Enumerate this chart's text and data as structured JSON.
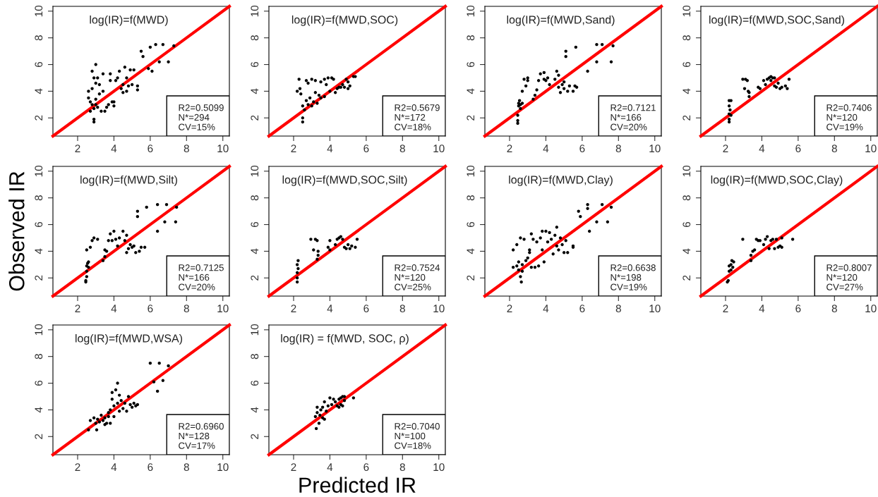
{
  "chart_data": [
    {
      "type": "scatter",
      "title": "log(IR)=f(MWD)",
      "xlim": [
        0.64,
        10.36
      ],
      "ylim": [
        0.64,
        10.36
      ],
      "xticks": [
        2,
        4,
        6,
        8,
        10
      ],
      "yticks": [
        2,
        4,
        6,
        8,
        10
      ],
      "marker": "circle",
      "annotations": [
        "R2=0.5099\nN*=294\nCV=15%"
      ],
      "series": [
        {
          "type": "scatter",
          "color": "#000000",
          "x": [
            2.6,
            2.6,
            2.7,
            2.7,
            2.8,
            2.8,
            2.8,
            2.9,
            2.9,
            2.9,
            2.9,
            3.0,
            3.0,
            3.0,
            3.0,
            3.1,
            3.1,
            3.2,
            3.2,
            3.3,
            3.4,
            3.4,
            3.5,
            3.6,
            3.7,
            3.8,
            3.8,
            3.9,
            4.0,
            4.0,
            4.1,
            4.2,
            4.3,
            4.4,
            4.5,
            4.5,
            4.6,
            4.7,
            4.7,
            4.8,
            4.9,
            5.0,
            5.1,
            5.3,
            5.3,
            5.5,
            5.6,
            5.9,
            6.0,
            6.1,
            6.3,
            6.5,
            6.7,
            7.0,
            7.3
          ],
          "values": [
            3.5,
            4.0,
            3.2,
            2.5,
            3.0,
            4.2,
            5.5,
            5.0,
            2.7,
            1.7,
            1.9,
            6.0,
            3.4,
            4.6,
            3.0,
            5.0,
            2.8,
            3.8,
            4.5,
            2.5,
            5.3,
            4.0,
            2.5,
            2.8,
            3.0,
            4.8,
            5.3,
            3.2,
            2.9,
            3.2,
            4.8,
            5.0,
            5.5,
            4.2,
            3.9,
            4.5,
            5.8,
            4.0,
            5.0,
            4.4,
            5.6,
            4.5,
            5.6,
            4.4,
            4.1,
            7.0,
            6.6,
            5.7,
            7.3,
            5.5,
            7.5,
            6.2,
            7.5,
            6.2,
            7.4
          ]
        },
        {
          "type": "line",
          "color": "#ff0000",
          "marker": "none",
          "x": [
            0.64,
            10.36
          ],
          "values": [
            0.64,
            10.36
          ]
        }
      ]
    },
    {
      "type": "scatter",
      "title": "log(IR)=f(MWD,SOC)",
      "xlim": [
        0.64,
        10.36
      ],
      "ylim": [
        0.64,
        10.36
      ],
      "xticks": [
        2,
        4,
        6,
        8,
        10
      ],
      "yticks": [
        2,
        4,
        6,
        8,
        10
      ],
      "marker": "circle",
      "annotations": [
        "R2=0.5679\nN*=172\nCV=18%"
      ],
      "series": [
        {
          "type": "scatter",
          "color": "#000000",
          "x": [
            2.2,
            2.3,
            2.35,
            2.4,
            2.5,
            2.5,
            2.5,
            2.6,
            2.7,
            2.7,
            2.8,
            2.8,
            2.9,
            3.0,
            3.0,
            3.1,
            3.2,
            3.2,
            3.3,
            3.4,
            3.5,
            3.5,
            3.7,
            3.7,
            3.8,
            3.9,
            4.0,
            4.1,
            4.2,
            4.3,
            4.4,
            4.5,
            4.6,
            4.7,
            4.8,
            4.9,
            5.0,
            5.0,
            5.1,
            5.3,
            5.4
          ],
          "values": [
            4.0,
            4.9,
            4.2,
            3.8,
            1.7,
            2.0,
            2.9,
            2.6,
            3.3,
            4.8,
            4.6,
            3.0,
            3.5,
            4.9,
            2.9,
            3.2,
            4.8,
            3.9,
            3.1,
            3.7,
            4.7,
            3.5,
            4.9,
            3.6,
            4.5,
            5.0,
            4.0,
            5.0,
            4.9,
            3.9,
            4.2,
            4.3,
            4.3,
            4.5,
            4.3,
            4.9,
            4.2,
            4.7,
            4.4,
            5.1,
            5.1
          ]
        },
        {
          "type": "line",
          "color": "#ff0000",
          "marker": "none",
          "x": [
            0.64,
            10.36
          ],
          "values": [
            0.64,
            10.36
          ]
        }
      ]
    },
    {
      "type": "scatter",
      "title": "log(IR)=f(MWD,Sand)",
      "xlim": [
        0.64,
        10.36
      ],
      "ylim": [
        0.64,
        10.36
      ],
      "xticks": [
        2,
        4,
        6,
        8,
        10
      ],
      "yticks": [
        2,
        4,
        6,
        8,
        10
      ],
      "marker": "circle",
      "annotations": [
        "R2=0.7121\nN*=166\nCV=20%"
      ],
      "series": [
        {
          "type": "scatter",
          "color": "#000000",
          "x": [
            2.45,
            2.45,
            2.45,
            2.5,
            2.5,
            2.55,
            2.6,
            2.6,
            2.7,
            2.7,
            2.8,
            2.9,
            3.0,
            3.0,
            3.3,
            3.4,
            3.5,
            3.6,
            3.7,
            3.9,
            3.9,
            4.0,
            4.1,
            4.2,
            4.5,
            4.6,
            4.7,
            4.7,
            4.8,
            4.9,
            5.0,
            5.0,
            5.1,
            5.1,
            5.2,
            5.3,
            5.5,
            5.6,
            5.65,
            5.7,
            6.3,
            6.8,
            6.8,
            7.1,
            7.6,
            7.7
          ],
          "values": [
            1.6,
            1.8,
            2.2,
            2.9,
            3.1,
            3.3,
            2.7,
            3.0,
            4.0,
            3.1,
            4.9,
            4.4,
            4.8,
            5.0,
            3.4,
            3.7,
            4.1,
            4.8,
            5.3,
            5.4,
            4.9,
            4.8,
            5.0,
            4.5,
            4.9,
            5.5,
            5.2,
            4.3,
            3.9,
            4.5,
            4.2,
            4.7,
            6.6,
            7.0,
            4.0,
            4.4,
            4.0,
            4.4,
            7.3,
            4.3,
            5.5,
            7.5,
            6.2,
            7.5,
            6.2,
            7.4
          ]
        },
        {
          "type": "line",
          "color": "#ff0000",
          "marker": "none",
          "x": [
            0.64,
            10.36
          ],
          "values": [
            0.64,
            10.36
          ]
        }
      ]
    },
    {
      "type": "scatter",
      "title": "log(IR)=f(MWD,SOC,Sand)",
      "xlim": [
        0.64,
        10.36
      ],
      "ylim": [
        0.64,
        10.36
      ],
      "xticks": [
        2,
        4,
        6,
        8,
        10
      ],
      "yticks": [
        2,
        4,
        6,
        8,
        10
      ],
      "marker": "circle",
      "annotations": [
        "R2=0.7406\nN*=120\nCV=19%"
      ],
      "series": [
        {
          "type": "scatter",
          "color": "#000000",
          "x": [
            2.2,
            2.2,
            2.2,
            2.25,
            2.2,
            2.2,
            2.3,
            2.3,
            2.95,
            3.05,
            3.1,
            3.2,
            3.25,
            3.3,
            3.3,
            3.8,
            3.9,
            4.1,
            4.2,
            4.3,
            4.4,
            4.5,
            4.5,
            4.6,
            4.7,
            4.7,
            4.8,
            4.9,
            5.0,
            5.1,
            5.3,
            5.4,
            5.5
          ],
          "values": [
            1.7,
            1.9,
            2.3,
            2.6,
            2.9,
            3.3,
            3.3,
            2.2,
            4.9,
            4.2,
            4.9,
            4.8,
            4.0,
            3.6,
            3.9,
            4.3,
            4.2,
            4.8,
            4.5,
            4.9,
            5.0,
            4.8,
            5.1,
            5.0,
            5.0,
            4.4,
            4.3,
            4.6,
            4.2,
            4.3,
            4.4,
            4.2,
            4.9
          ]
        },
        {
          "type": "line",
          "color": "#ff0000",
          "marker": "none",
          "x": [
            0.64,
            10.36
          ],
          "values": [
            0.64,
            10.36
          ]
        }
      ]
    },
    {
      "type": "scatter",
      "title": "log(IR)=f(MWD,Silt)",
      "ylabel": "Observed IR",
      "xlim": [
        0.64,
        10.36
      ],
      "ylim": [
        0.64,
        10.36
      ],
      "xticks": [
        2,
        4,
        6,
        8,
        10
      ],
      "yticks": [
        2,
        4,
        6,
        8,
        10
      ],
      "marker": "circle",
      "annotations": [
        "R2=0.7125\nN*=166\nCV=20%"
      ],
      "series": [
        {
          "type": "scatter",
          "color": "#000000",
          "x": [
            2.45,
            2.45,
            2.5,
            2.5,
            2.5,
            2.55,
            2.6,
            2.6,
            2.5,
            2.7,
            2.8,
            2.9,
            3.1,
            3.4,
            3.5,
            3.5,
            3.6,
            3.7,
            3.8,
            3.9,
            4.0,
            4.1,
            4.2,
            4.3,
            4.5,
            4.6,
            4.7,
            4.7,
            4.8,
            4.9,
            5.0,
            5.1,
            5.2,
            5.3,
            5.3,
            5.4,
            5.5,
            5.7,
            5.8,
            6.4,
            6.4,
            6.8,
            6.9,
            7.4,
            7.45
          ],
          "values": [
            1.7,
            1.8,
            2.1,
            2.5,
            2.9,
            3.1,
            3.2,
            2.8,
            4.1,
            4.3,
            4.8,
            5.0,
            4.9,
            3.3,
            3.6,
            4.1,
            4.0,
            4.8,
            5.3,
            4.8,
            5.5,
            4.9,
            4.4,
            5.0,
            5.5,
            4.8,
            5.2,
            3.9,
            4.2,
            4.5,
            4.3,
            4.4,
            3.9,
            7.0,
            6.6,
            4.0,
            4.3,
            4.3,
            7.3,
            5.5,
            7.5,
            6.2,
            7.5,
            6.2,
            7.3
          ]
        },
        {
          "type": "line",
          "color": "#ff0000",
          "marker": "none",
          "x": [
            0.64,
            10.36
          ],
          "values": [
            0.64,
            10.36
          ]
        }
      ]
    },
    {
      "type": "scatter",
      "title": "log(IR)=f(MWD,SOC,Silt)",
      "xlim": [
        0.64,
        10.36
      ],
      "ylim": [
        0.64,
        10.36
      ],
      "xticks": [
        2,
        4,
        6,
        8,
        10
      ],
      "yticks": [
        2,
        4,
        6,
        8,
        10
      ],
      "marker": "circle",
      "annotations": [
        "R2=0.7524\nN*=120\nCV=25%"
      ],
      "series": [
        {
          "type": "scatter",
          "color": "#000000",
          "x": [
            2.2,
            2.2,
            2.2,
            2.25,
            2.2,
            2.25,
            2.95,
            3.1,
            3.2,
            3.3,
            3.3,
            3.35,
            3.35,
            3.9,
            4.0,
            4.0,
            4.3,
            4.4,
            4.5,
            4.6,
            4.7,
            4.8,
            4.9,
            5.0,
            5.1,
            5.2,
            5.4,
            5.5
          ],
          "values": [
            1.7,
            2.0,
            2.4,
            2.7,
            3.0,
            3.3,
            4.9,
            4.1,
            4.9,
            4.8,
            3.4,
            3.7,
            4.0,
            4.3,
            4.1,
            4.8,
            4.5,
            4.9,
            5.0,
            5.1,
            4.9,
            4.3,
            4.2,
            4.5,
            4.2,
            4.4,
            4.3,
            4.9
          ]
        },
        {
          "type": "line",
          "color": "#ff0000",
          "marker": "none",
          "x": [
            0.64,
            10.36
          ],
          "values": [
            0.64,
            10.36
          ]
        }
      ]
    },
    {
      "type": "scatter",
      "title": "log(IR)=f(MWD,Clay)",
      "xlim": [
        0.64,
        10.36
      ],
      "ylim": [
        0.64,
        10.36
      ],
      "xticks": [
        2,
        4,
        6,
        8,
        10
      ],
      "yticks": [
        2,
        4,
        6,
        8,
        10
      ],
      "marker": "circle",
      "annotations": [
        "R2=0.6638\nN*=198\nCV=19%"
      ],
      "series": [
        {
          "type": "scatter",
          "color": "#000000",
          "x": [
            2.2,
            2.2,
            2.4,
            2.4,
            2.5,
            2.5,
            2.6,
            2.6,
            2.65,
            2.7,
            2.7,
            2.8,
            2.9,
            3.0,
            3.1,
            3.1,
            3.2,
            3.2,
            3.3,
            3.4,
            3.5,
            3.6,
            3.7,
            3.8,
            3.8,
            3.9,
            4.0,
            4.1,
            4.2,
            4.3,
            4.4,
            4.5,
            4.6,
            4.6,
            4.7,
            4.8,
            4.9,
            5.0,
            5.1,
            5.2,
            5.5,
            5.5,
            5.8,
            5.9,
            6.3,
            6.3,
            6.4,
            6.8,
            7.1,
            7.4,
            7.6
          ],
          "values": [
            4.1,
            2.8,
            4.5,
            2.9,
            3.2,
            2.6,
            5.0,
            2.1,
            1.7,
            3.0,
            2.5,
            4.9,
            3.3,
            3.5,
            4.1,
            3.9,
            5.3,
            2.8,
            4.9,
            2.8,
            4.7,
            2.9,
            5.0,
            5.5,
            4.1,
            3.2,
            5.5,
            4.7,
            5.4,
            4.9,
            3.8,
            5.2,
            5.8,
            4.4,
            4.1,
            5.0,
            4.5,
            3.9,
            4.8,
            3.9,
            4.3,
            4.4,
            7.0,
            6.6,
            7.5,
            7.2,
            5.5,
            6.2,
            7.5,
            6.2,
            7.3
          ]
        },
        {
          "type": "line",
          "color": "#ff0000",
          "marker": "none",
          "x": [
            0.64,
            10.36
          ],
          "values": [
            0.64,
            10.36
          ]
        }
      ]
    },
    {
      "type": "scatter",
      "title": "log(IR)=f(MWD,SOC,Clay)",
      "xlim": [
        0.64,
        10.36
      ],
      "ylim": [
        0.64,
        10.36
      ],
      "xticks": [
        2,
        4,
        6,
        8,
        10
      ],
      "yticks": [
        2,
        4,
        6,
        8,
        10
      ],
      "marker": "circle",
      "annotations": [
        "R2=0.8007\nN*=120\nCV=27%"
      ],
      "series": [
        {
          "type": "scatter",
          "color": "#000000",
          "x": [
            2.1,
            2.15,
            2.2,
            2.2,
            2.3,
            2.3,
            2.35,
            2.4,
            2.45,
            2.95,
            3.4,
            3.4,
            3.5,
            3.6,
            3.7,
            3.8,
            3.9,
            4.1,
            4.2,
            4.3,
            4.4,
            4.5,
            4.6,
            4.7,
            4.8,
            4.9,
            5.0,
            5.1,
            5.1,
            5.7
          ],
          "values": [
            1.7,
            1.8,
            2.5,
            2.9,
            2.6,
            3.0,
            3.3,
            2.8,
            3.2,
            4.9,
            3.3,
            3.7,
            4.0,
            4.1,
            4.9,
            4.8,
            4.8,
            4.5,
            4.9,
            5.1,
            4.2,
            4.8,
            4.9,
            4.2,
            4.9,
            4.3,
            4.4,
            5.0,
            4.3,
            4.9
          ]
        },
        {
          "type": "line",
          "color": "#ff0000",
          "marker": "none",
          "x": [
            0.64,
            10.36
          ],
          "values": [
            0.64,
            10.36
          ]
        }
      ]
    },
    {
      "type": "scatter",
      "title": "log(IR)=f(MWD,WSA)",
      "xlim": [
        0.64,
        10.36
      ],
      "ylim": [
        0.64,
        10.36
      ],
      "xticks": [
        2,
        4,
        6,
        8,
        10
      ],
      "yticks": [
        2,
        4,
        6,
        8,
        10
      ],
      "marker": "circle",
      "annotations": [
        "R2=0.6960\nN*=128\nCV=17%"
      ],
      "series": [
        {
          "type": "scatter",
          "color": "#000000",
          "x": [
            2.6,
            2.7,
            2.9,
            3.0,
            3.05,
            3.1,
            3.2,
            3.3,
            3.4,
            3.5,
            3.5,
            3.6,
            3.7,
            3.7,
            3.8,
            3.8,
            3.9,
            3.9,
            4.0,
            4.0,
            4.1,
            4.2,
            4.2,
            4.3,
            4.3,
            4.4,
            4.5,
            4.6,
            4.7,
            4.8,
            4.9,
            5.0,
            5.1,
            5.2,
            5.3,
            6.0,
            6.2,
            6.4,
            6.5,
            6.7,
            7.0
          ],
          "values": [
            2.5,
            3.2,
            3.4,
            3.0,
            2.5,
            3.3,
            3.1,
            3.6,
            3.2,
            2.9,
            3.4,
            3.0,
            3.5,
            3.8,
            3.0,
            4.0,
            4.8,
            5.3,
            4.3,
            3.5,
            5.5,
            4.5,
            6.0,
            5.1,
            3.9,
            4.7,
            4.1,
            4.5,
            3.9,
            5.0,
            4.4,
            4.2,
            4.5,
            4.3,
            4.4,
            7.5,
            6.1,
            5.4,
            7.5,
            6.2,
            7.3
          ]
        },
        {
          "type": "line",
          "color": "#ff0000",
          "marker": "none",
          "x": [
            0.64,
            10.36
          ],
          "values": [
            0.64,
            10.36
          ]
        }
      ]
    },
    {
      "type": "scatter",
      "title": "log(IR) = f(MWD, SOC, ρ)",
      "xlabel": "Predicted IR",
      "xlim": [
        0.64,
        10.36
      ],
      "ylim": [
        0.64,
        10.36
      ],
      "xticks": [
        2,
        4,
        6,
        8,
        10
      ],
      "yticks": [
        2,
        4,
        6,
        8,
        10
      ],
      "marker": "circle",
      "annotations": [
        "R2=0.7040\nN*=100\nCV=18%"
      ],
      "series": [
        {
          "type": "scatter",
          "color": "#000000",
          "x": [
            3.2,
            3.25,
            3.3,
            3.3,
            3.4,
            3.45,
            3.5,
            3.6,
            3.6,
            3.7,
            3.7,
            3.8,
            3.9,
            4.0,
            4.1,
            4.2,
            4.3,
            4.4,
            4.5,
            4.5,
            4.6,
            4.6,
            4.7,
            4.7,
            4.8,
            4.8,
            5.3
          ],
          "values": [
            3.5,
            2.6,
            4.2,
            3.8,
            3.0,
            3.6,
            4.0,
            3.4,
            4.2,
            3.3,
            4.6,
            3.9,
            4.3,
            4.9,
            4.4,
            4.8,
            4.6,
            4.3,
            4.2,
            4.8,
            4.4,
            4.9,
            4.3,
            5.0,
            4.7,
            5.0,
            4.9
          ]
        },
        {
          "type": "line",
          "color": "#ff0000",
          "marker": "none",
          "x": [
            0.64,
            10.36
          ],
          "values": [
            0.64,
            10.36
          ]
        }
      ]
    }
  ]
}
